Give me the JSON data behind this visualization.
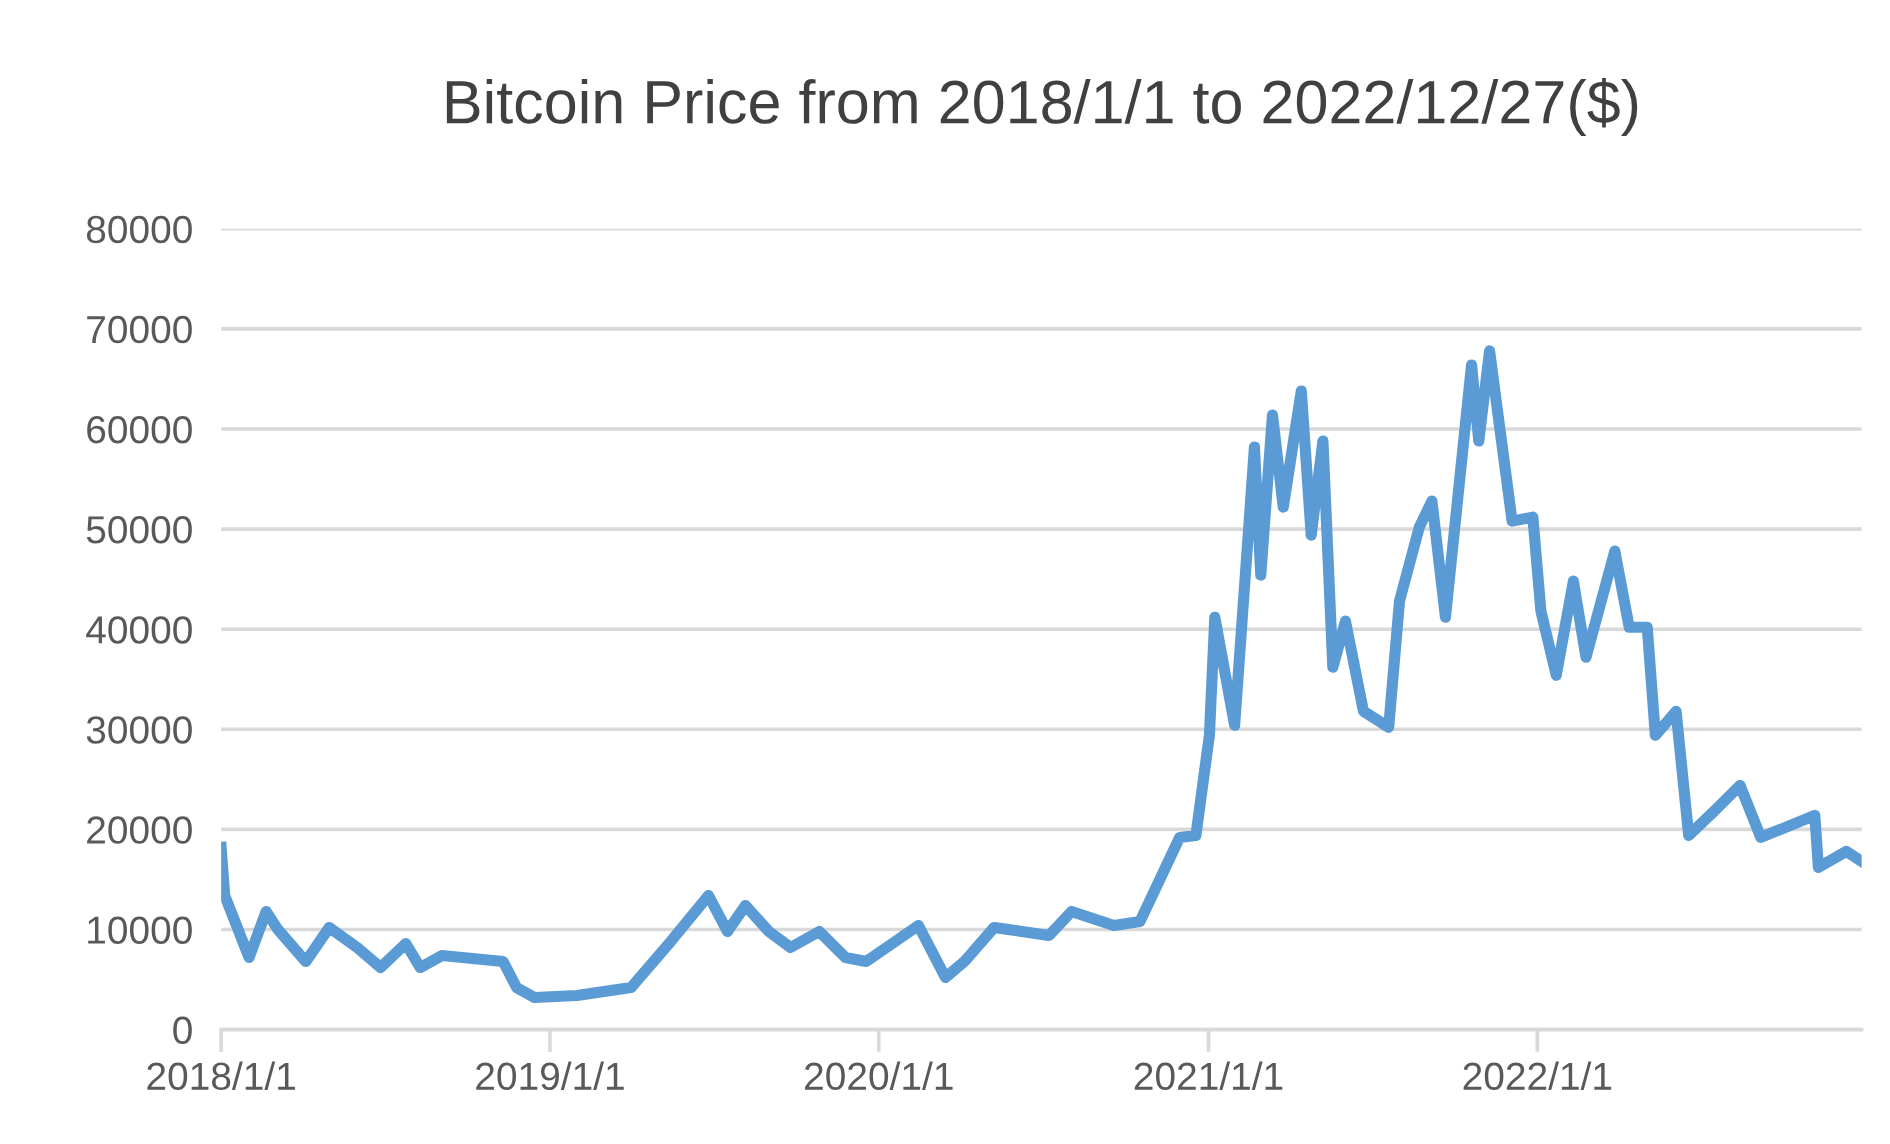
{
  "chart_data": {
    "type": "line",
    "title": "Bitcoin Price from 2018/1/1 to 2022/12/27($)",
    "xlim": [
      "2018-01-01",
      "2022-12-27"
    ],
    "xticks": [
      {
        "value": "2018-01-01",
        "label": "2018/1/1"
      },
      {
        "value": "2019-01-01",
        "label": "2019/1/1"
      },
      {
        "value": "2020-01-01",
        "label": "2020/1/1"
      },
      {
        "value": "2021-01-01",
        "label": "2021/1/1"
      },
      {
        "value": "2022-01-01",
        "label": "2022/1/1"
      }
    ],
    "ylim": [
      0,
      80000
    ],
    "yticks": [
      0,
      10000,
      20000,
      30000,
      40000,
      50000,
      60000,
      70000,
      80000
    ],
    "grid": "y",
    "marker": "none",
    "line_style": "solid",
    "series": [
      {
        "color": "#5b9bd5",
        "x": [
          "2018-01-01",
          "2018-01-05",
          "2018-02-01",
          "2018-02-20",
          "2018-03-05",
          "2018-04-05",
          "2018-05-01",
          "2018-06-01",
          "2018-06-27",
          "2018-07-25",
          "2018-08-10",
          "2018-09-03",
          "2018-11-10",
          "2018-11-25",
          "2018-12-15",
          "2019-01-31",
          "2019-04-01",
          "2019-05-15",
          "2019-06-26",
          "2019-07-17",
          "2019-08-06",
          "2019-09-01",
          "2019-09-25",
          "2019-10-27",
          "2019-11-25",
          "2019-12-18",
          "2020-02-14",
          "2020-03-15",
          "2020-04-05",
          "2020-05-08",
          "2020-07-08",
          "2020-08-02",
          "2020-09-18",
          "2020-10-17",
          "2020-11-30",
          "2020-12-18",
          "2021-01-02",
          "2021-01-08",
          "2021-01-30",
          "2021-02-21",
          "2021-02-28",
          "2021-03-13",
          "2021-03-25",
          "2021-04-14",
          "2021-04-25",
          "2021-05-08",
          "2021-05-19",
          "2021-06-02",
          "2021-06-22",
          "2021-07-20",
          "2021-08-01",
          "2021-08-23",
          "2021-09-06",
          "2021-09-21",
          "2021-10-20",
          "2021-10-28",
          "2021-11-09",
          "2021-12-04",
          "2021-12-27",
          "2022-01-05",
          "2022-01-22",
          "2022-02-10",
          "2022-02-24",
          "2022-03-28",
          "2022-04-13",
          "2022-05-03",
          "2022-05-12",
          "2022-06-04",
          "2022-06-18",
          "2022-07-16",
          "2022-08-14",
          "2022-09-06",
          "2022-11-05",
          "2022-11-09",
          "2022-12-10",
          "2022-12-27"
        ],
        "values": [
          18200,
          13400,
          7200,
          11800,
          10000,
          6800,
          10200,
          8200,
          6200,
          8600,
          6200,
          7400,
          6800,
          4200,
          3200,
          3400,
          4200,
          8800,
          13400,
          9800,
          12400,
          9800,
          8200,
          9800,
          7200,
          6800,
          10400,
          5200,
          6800,
          10200,
          9400,
          11800,
          10400,
          10800,
          19200,
          19400,
          29400,
          41200,
          30400,
          58200,
          45400,
          61400,
          52200,
          63800,
          49400,
          58800,
          36200,
          40800,
          31800,
          30200,
          42800,
          50200,
          52800,
          41200,
          66400,
          58800,
          67800,
          50800,
          51200,
          41800,
          35400,
          44800,
          37200,
          47800,
          40200,
          40200,
          29400,
          31800,
          19400,
          21800,
          24400,
          19200,
          21400,
          16200,
          17800,
          16800
        ]
      }
    ]
  }
}
